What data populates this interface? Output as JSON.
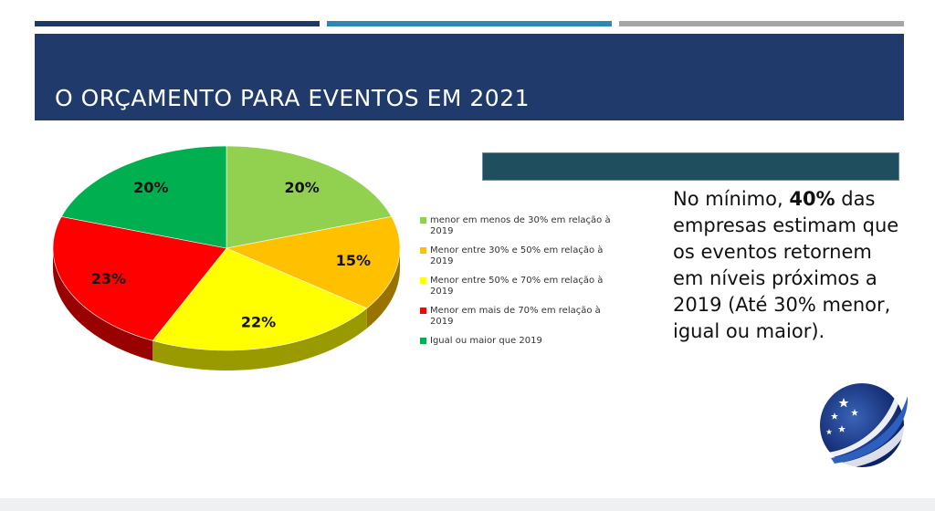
{
  "slide": {
    "title": "O ORÇAMENTO PARA EVENTOS EM 2021",
    "body": {
      "part1": "No mínimo, ",
      "bold": "40%",
      "part2": " das empresas estimam que os eventos retornem em níveis próximos a 2019 (Até 30% menor, igual ou maior)."
    },
    "colors": {
      "title_band": "#1f3a6b",
      "accent_bar": "#1f4e5f"
    },
    "logo_icon": "globe-swoosh-logo"
  },
  "chart_data": {
    "type": "pie",
    "title": "",
    "categories": [
      "menor em menos de 30% em relação à 2019",
      "Menor entre 30% e 50% em relação à 2019",
      "Menor entre 50% e 70% em relação à 2019",
      "Menor em mais de 70% em relação à 2019",
      "Igual ou maior que 2019"
    ],
    "values": [
      20,
      15,
      22,
      23,
      20
    ],
    "labels": [
      "20%",
      "15%",
      "22%",
      "23%",
      "20%"
    ],
    "colors": [
      "#92d050",
      "#ffc000",
      "#ffff00",
      "#ff0000",
      "#00b050"
    ],
    "legend_position": "right"
  }
}
